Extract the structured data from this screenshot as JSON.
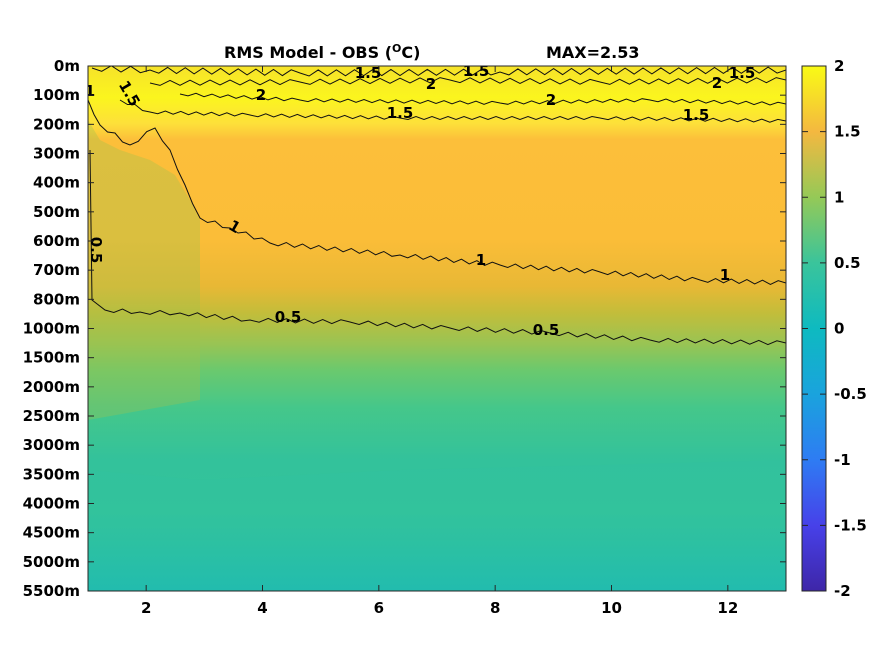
{
  "chart_data": {
    "type": "heatmap",
    "title": "RMS Model - OBS (",
    "title_unit": "C)",
    "title_degree": "O",
    "max_label": "MAX=2.53",
    "x_ticks": [
      2,
      4,
      6,
      8,
      10,
      12
    ],
    "x_range": [
      1,
      13
    ],
    "y_tick_labels": [
      "0m",
      "100m",
      "200m",
      "300m",
      "400m",
      "500m",
      "600m",
      "700m",
      "800m",
      "1000m",
      "1500m",
      "2000m",
      "2500m",
      "3000m",
      "3500m",
      "4000m",
      "4500m",
      "5000m",
      "5500m"
    ],
    "colorbar": {
      "range": [
        -2,
        2
      ],
      "ticks": [
        2,
        1.5,
        1,
        0.5,
        0,
        -0.5,
        -1,
        -1.5,
        -2
      ],
      "tick_labels": [
        "2",
        "1.5",
        "1",
        "0.5",
        "0",
        "-0.5",
        "-1",
        "-1.5",
        "-2"
      ],
      "colors": [
        "#3e26a8",
        "#4a42f4",
        "#2d8bf0",
        "#14b6d3",
        "#36c493",
        "#81cc59",
        "#d8ba2f",
        "#fdbd3c",
        "#f9fb15"
      ]
    },
    "contour_levels": [
      0.5,
      1,
      1.5,
      2
    ],
    "contour_labels": [
      "0.5",
      "0.5",
      "0.5",
      "1",
      "1",
      "1",
      "1",
      "1.5",
      "1.5",
      "1.5",
      "1.5",
      "1.5",
      "1.5",
      "2",
      "2",
      "2",
      "2",
      "1"
    ],
    "depth_profile": [
      {
        "depth": "0m",
        "value": 1.7
      },
      {
        "depth": "100m",
        "value": 1.95
      },
      {
        "depth": "200m",
        "value": 1.3
      },
      {
        "depth": "300m",
        "value": 1.2
      },
      {
        "depth": "400m",
        "value": 1.2
      },
      {
        "depth": "500m",
        "value": 1.15
      },
      {
        "depth": "600m",
        "value": 1.1
      },
      {
        "depth": "700m",
        "value": 1.0
      },
      {
        "depth": "800m",
        "value": 0.85
      },
      {
        "depth": "1000m",
        "value": 0.6
      },
      {
        "depth": "1500m",
        "value": 0.45
      },
      {
        "depth": "2000m",
        "value": 0.35
      },
      {
        "depth": "2500m",
        "value": 0.3
      },
      {
        "depth": "3000m",
        "value": 0.28
      },
      {
        "depth": "3500m",
        "value": 0.27
      },
      {
        "depth": "4000m",
        "value": 0.3
      },
      {
        "depth": "4500m",
        "value": 0.28
      },
      {
        "depth": "5000m",
        "value": 0.24
      },
      {
        "depth": "5500m",
        "value": 0.22
      }
    ]
  }
}
